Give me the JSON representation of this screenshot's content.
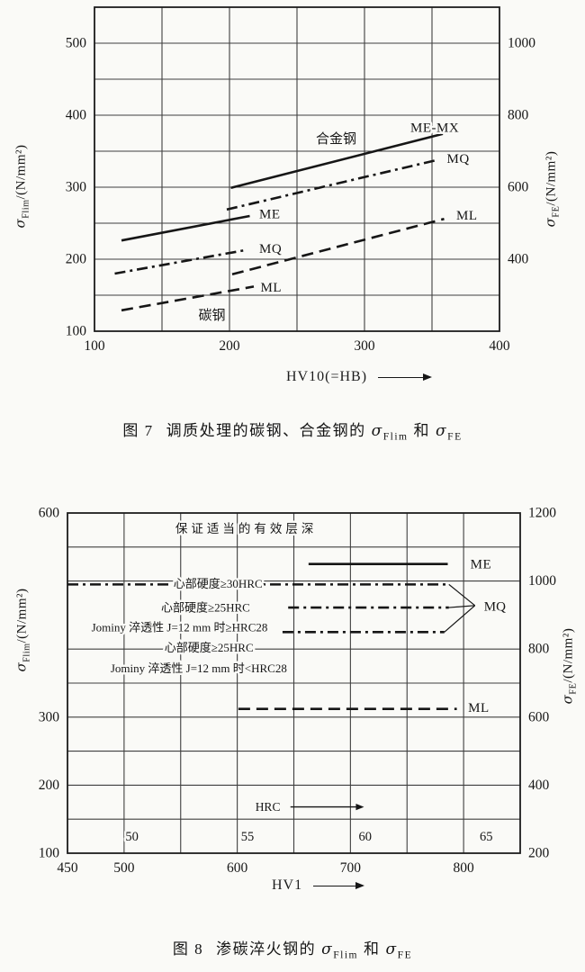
{
  "page": {
    "background": "#fafaf7",
    "ink": "#161616",
    "grid_color": "#3f3f3f"
  },
  "figure7": {
    "caption": {
      "fig": "图 7",
      "title": "调质处理的碳钢、合金钢的",
      "sigma1": "σ",
      "sub1": "Flim",
      "conj": "和",
      "sigma2": "σ",
      "sub2": "FE"
    },
    "x_axis_title": "HV10(=HB)",
    "y_left": {
      "sym": "σ",
      "sub": "Flim",
      "rest": "/(N/mm²)"
    },
    "y_right": {
      "sym": "σ",
      "sub": "FE",
      "rest": "/(N/mm²)"
    }
  },
  "figure8": {
    "caption": {
      "fig": "图 8",
      "title": "渗碳淬火钢的",
      "sigma1": "σ",
      "sub1": "Flim",
      "conj": "和",
      "sigma2": "σ",
      "sub2": "FE"
    },
    "x_axis_title": "HV1",
    "y_left": {
      "sym": "σ",
      "sub": "Flim",
      "rest": "/(N/mm²)"
    },
    "y_right": {
      "sym": "σ",
      "sub": "FE",
      "rest": "/(N/mm²)"
    }
  },
  "chart_data": [
    {
      "type": "line",
      "title": "调质处理的碳钢、合金钢的 σFlim 和 σFE",
      "xlabel": "HV10(=HB)",
      "ylabel": "σFlim/(N/mm²)",
      "y2label": "σFE/(N/mm²)",
      "x_range": [
        100,
        400
      ],
      "y_range": [
        100,
        550
      ],
      "y2_range": [
        200,
        1100
      ],
      "x_ticks": [
        100,
        200,
        300,
        400
      ],
      "y_ticks": [
        100,
        200,
        300,
        400,
        500
      ],
      "y2_ticks": [
        400,
        600,
        800,
        1000
      ],
      "grid_step": 50,
      "grid_skip_y": [],
      "legend_position": "inline-labels",
      "series": [
        {
          "name": "carbon-ME",
          "label": "ME",
          "style": "solid",
          "points": [
            [
              120,
              226
            ],
            [
              215,
              260
            ]
          ],
          "label_at": [
            222,
            262
          ]
        },
        {
          "name": "carbon-MQ",
          "label": "MQ",
          "style": "dashdot",
          "points": [
            [
              115,
              180
            ],
            [
              213,
              213
            ]
          ],
          "label_at": [
            222,
            214
          ]
        },
        {
          "name": "carbon-ML",
          "label": "ML",
          "style": "dash",
          "points": [
            [
              120,
              129
            ],
            [
              218,
              162
            ]
          ],
          "label_at": [
            223,
            160
          ]
        },
        {
          "name": "alloy-ME-MX",
          "label": "ME-MX",
          "style": "solid",
          "points": [
            [
              201,
              299
            ],
            [
              358,
              374
            ]
          ],
          "label_at": [
            334,
            382
          ]
        },
        {
          "name": "alloy-MQ",
          "label": "MQ",
          "style": "dashdot",
          "points": [
            [
              198,
              269
            ],
            [
              352,
              337
            ]
          ],
          "label_at": [
            361,
            339
          ]
        },
        {
          "name": "alloy-ML",
          "label": "ML",
          "style": "dash",
          "points": [
            [
              202,
              179
            ],
            [
              359,
              256
            ]
          ],
          "label_at": [
            368,
            260
          ]
        }
      ],
      "annotations": [
        {
          "type": "text",
          "text": "合金钢",
          "at": [
            279,
            366
          ],
          "size": 15,
          "cjk": true
        },
        {
          "type": "text",
          "text": "碳钢",
          "at": [
            187,
            121
          ],
          "size": 15,
          "cjk": true
        }
      ]
    },
    {
      "type": "line",
      "title": "渗碳淬火钢的 σFlim 和 σFE",
      "xlabel": "HV1",
      "ylabel": "σFlim/(N/mm²)",
      "y2label": "σFE/(N/mm²)",
      "x_range": [
        450,
        850
      ],
      "y_range": [
        100,
        600
      ],
      "y2_range": [
        200,
        1200
      ],
      "x_ticks": [
        450,
        500,
        600,
        700,
        800
      ],
      "y_ticks": [
        100,
        200,
        300,
        600
      ],
      "y2_ticks": [
        200,
        400,
        600,
        800,
        1000,
        1200
      ],
      "grid_step": 50,
      "grid_skip_y": [
        450
      ],
      "legend_position": "inline-labels",
      "series": [
        {
          "name": "ME",
          "label": "ME",
          "style": "solid",
          "points": [
            [
              663,
              525
            ],
            [
              786,
              525
            ]
          ],
          "label_at": [
            806,
            524
          ]
        },
        {
          "name": "MQ-core-ge-30HRC",
          "label": "",
          "style": "dashdot",
          "points": [
            [
              450,
              495
            ],
            [
              787,
              495
            ]
          ]
        },
        {
          "name": "MQ-core-ge-25HRC-J-ge-28",
          "label": "",
          "style": "dashdot",
          "points": [
            [
              645,
              461
            ],
            [
              787,
              461
            ]
          ]
        },
        {
          "name": "MQ-core-ge-25HRC-J-lt-28",
          "label": "",
          "style": "dashdot",
          "points": [
            [
              640,
              425
            ],
            [
              783,
              425
            ]
          ]
        },
        {
          "name": "ML",
          "label": "ML",
          "style": "dash",
          "points": [
            [
              601,
              312
            ],
            [
              794,
              312
            ]
          ],
          "label_at": [
            804,
            313
          ]
        }
      ],
      "bracket": {
        "ends": [
          [
            787,
            495
          ],
          [
            787,
            461
          ],
          [
            783,
            425
          ]
        ],
        "tip": [
          810,
          464
        ],
        "label": "MQ",
        "label_at": [
          818,
          462
        ]
      },
      "annotations": [
        {
          "type": "text",
          "text": "保证适当的有效层深",
          "at": [
            608,
            577
          ],
          "size": 13.5,
          "cjk": true,
          "spread": true
        },
        {
          "type": "text",
          "text": "心部硬度≥30HRC",
          "at": [
            583,
            496
          ],
          "size": 13,
          "cjk": true
        },
        {
          "type": "text",
          "text": "心部硬度≥25HRC",
          "at": [
            572,
            461
          ],
          "size": 13,
          "cjk": true
        },
        {
          "type": "text",
          "text": "Jominy 淬透性 J=12 mm 时≥HRC28",
          "at": [
            549,
            432
          ],
          "size": 13,
          "cjk": true
        },
        {
          "type": "text",
          "text": "心部硬度≥25HRC",
          "at": [
            575,
            402
          ],
          "size": 13,
          "cjk": true
        },
        {
          "type": "text",
          "text": "Jominy 淬透性 J=12 mm 时<HRC28",
          "at": [
            566,
            372
          ],
          "size": 13,
          "cjk": true
        },
        {
          "type": "text",
          "text": "HRC",
          "at": [
            627,
            168
          ],
          "size": 13.5
        },
        {
          "type": "arrow",
          "from": [
            647,
            168
          ],
          "to": [
            712,
            168
          ]
        },
        {
          "type": "text",
          "text": "50",
          "at": [
            507,
            124
          ],
          "size": 14.5
        },
        {
          "type": "text",
          "text": "55",
          "at": [
            609,
            124
          ],
          "size": 14.5
        },
        {
          "type": "text",
          "text": "60",
          "at": [
            713,
            124
          ],
          "size": 14.5
        },
        {
          "type": "text",
          "text": "65",
          "at": [
            820,
            124
          ],
          "size": 14.5
        }
      ]
    }
  ]
}
